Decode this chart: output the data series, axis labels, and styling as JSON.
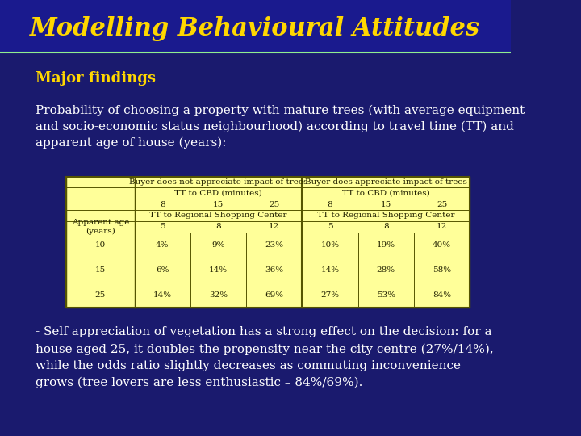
{
  "title": "Modelling Behavioural Attitudes",
  "title_color": "#FFD700",
  "title_fontsize": 22,
  "bg_color": "#1a1a6e",
  "header_bar_color": "#2a2a8e",
  "header_line_color": "#90EE90",
  "major_findings_text": "Major findings",
  "major_findings_color": "#FFD700",
  "major_findings_fontsize": 13,
  "intro_text": "Probability of choosing a property with mature trees (with average equipment\nand socio-economic status neighbourhood) according to travel time (TT) and\napparent age of house (years):",
  "intro_color": "#FFFFFF",
  "intro_fontsize": 11,
  "table_bg": "#FFFF99",
  "table_header_bg": "#FFFF99",
  "table_border_color": "#AAAAAA",
  "col_headers_row1": [
    "",
    "Buyer does not appreciate impact of trees",
    "Buyer does appreciate impact of trees"
  ],
  "col_headers_row2": [
    "",
    "TT to CBD (minutes)",
    "TT to CBD (minutes)"
  ],
  "col_headers_row3": [
    "",
    "8",
    "15",
    "25",
    "8",
    "15",
    "25"
  ],
  "col_headers_row4": [
    "",
    "TT to Regional Shopping Center",
    "TT to Regional Shopping Center"
  ],
  "col_headers_row5": [
    "Apparent age\n(years)",
    "5",
    "8",
    "12",
    "5",
    "8",
    "12"
  ],
  "data_rows": [
    [
      "10",
      "4%",
      "9%",
      "23%",
      "10%",
      "19%",
      "40%"
    ],
    [
      "15",
      "6%",
      "14%",
      "36%",
      "14%",
      "28%",
      "58%"
    ],
    [
      "25",
      "14%",
      "32%",
      "69%",
      "27%",
      "53%",
      "84%"
    ]
  ],
  "footer_text": "- Self appreciation of vegetation has a strong effect on the decision: for a\nhouse aged 25, it doubles the propensity near the city centre (27%/14%),\nwhile the odds ratio slightly decreases as commuting inconvenience\ngrows (tree lovers are less enthusiastic – 84%/69%).",
  "footer_color": "#FFFFFF",
  "footer_fontsize": 11
}
